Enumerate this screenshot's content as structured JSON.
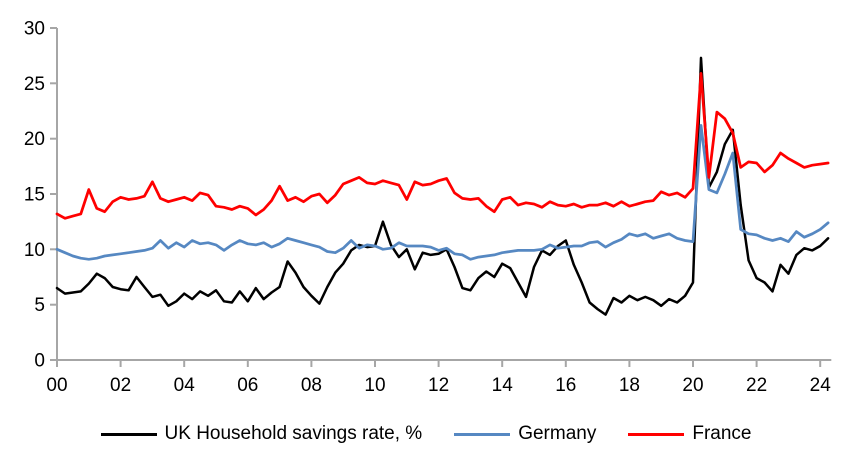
{
  "chart_data": {
    "type": "line",
    "title": "",
    "xlabel": "",
    "ylabel": "",
    "xlim": [
      2000,
      2024.5
    ],
    "ylim": [
      0,
      30
    ],
    "y_ticks": [
      0,
      5,
      10,
      15,
      20,
      25,
      30
    ],
    "x_axis": {
      "tick_labels": [
        "00",
        "02",
        "04",
        "06",
        "08",
        "10",
        "12",
        "14",
        "16",
        "18",
        "20",
        "22",
        "24"
      ],
      "years_per_tick": 2
    },
    "x_start_year": 2000,
    "x_step_years": 0.25,
    "frequency": "quarterly",
    "grid": false,
    "legend_position": "bottom",
    "axis_color": "#A6A6A6",
    "series": [
      {
        "name": "UK Household savings rate, %",
        "color": "#000000",
        "values": [
          6.5,
          6.0,
          6.1,
          6.2,
          6.9,
          7.8,
          7.4,
          6.6,
          6.4,
          6.3,
          7.5,
          6.6,
          5.7,
          5.9,
          4.9,
          5.3,
          6.0,
          5.5,
          6.2,
          5.8,
          6.3,
          5.3,
          5.2,
          6.2,
          5.3,
          6.5,
          5.5,
          6.1,
          6.6,
          8.9,
          7.9,
          6.6,
          5.8,
          5.1,
          6.6,
          7.9,
          8.7,
          9.9,
          10.4,
          10.2,
          10.3,
          12.5,
          10.4,
          9.3,
          10.0,
          8.2,
          9.7,
          9.5,
          9.6,
          10.0,
          8.4,
          6.5,
          6.3,
          7.4,
          8.0,
          7.5,
          8.7,
          8.3,
          7.0,
          5.7,
          8.4,
          9.9,
          9.5,
          10.3,
          10.8,
          8.6,
          7.0,
          5.2,
          4.6,
          4.1,
          5.6,
          5.2,
          5.8,
          5.4,
          5.7,
          5.4,
          4.9,
          5.5,
          5.2,
          5.8,
          7.0,
          27.3,
          15.6,
          17.0,
          19.5,
          20.8,
          14.0,
          9.0,
          7.4,
          7.0,
          6.2,
          8.6,
          7.8,
          9.5,
          10.1,
          9.9,
          10.3,
          11.0
        ]
      },
      {
        "name": "Germany",
        "color": "#5688C2",
        "values": [
          10.0,
          9.7,
          9.4,
          9.2,
          9.1,
          9.2,
          9.4,
          9.5,
          9.6,
          9.7,
          9.8,
          9.9,
          10.1,
          10.8,
          10.1,
          10.6,
          10.2,
          10.8,
          10.5,
          10.6,
          10.4,
          9.9,
          10.4,
          10.8,
          10.5,
          10.4,
          10.6,
          10.2,
          10.5,
          11.0,
          10.8,
          10.6,
          10.4,
          10.2,
          9.8,
          9.7,
          10.1,
          10.8,
          10.1,
          10.4,
          10.3,
          10.0,
          10.1,
          10.6,
          10.3,
          10.3,
          10.3,
          10.2,
          9.9,
          10.1,
          9.6,
          9.5,
          9.1,
          9.3,
          9.4,
          9.5,
          9.7,
          9.8,
          9.9,
          9.9,
          9.9,
          10.0,
          10.4,
          10.1,
          10.2,
          10.3,
          10.3,
          10.6,
          10.7,
          10.2,
          10.6,
          10.9,
          11.4,
          11.2,
          11.4,
          11.0,
          11.2,
          11.4,
          11.0,
          10.8,
          10.7,
          21.2,
          15.4,
          15.1,
          16.8,
          18.7,
          11.8,
          11.4,
          11.3,
          11.0,
          10.8,
          11.0,
          10.7,
          11.6,
          11.1,
          11.4,
          11.8,
          12.4
        ]
      },
      {
        "name": "France",
        "color": "#FF0000",
        "values": [
          13.2,
          12.8,
          13.0,
          13.2,
          15.4,
          13.7,
          13.4,
          14.3,
          14.7,
          14.5,
          14.6,
          14.8,
          16.1,
          14.6,
          14.3,
          14.5,
          14.7,
          14.4,
          15.1,
          14.9,
          13.9,
          13.8,
          13.6,
          13.9,
          13.7,
          13.1,
          13.6,
          14.4,
          15.7,
          14.4,
          14.7,
          14.3,
          14.8,
          15.0,
          14.2,
          14.9,
          15.9,
          16.2,
          16.5,
          16.0,
          15.9,
          16.2,
          16.0,
          15.8,
          14.5,
          16.1,
          15.8,
          15.9,
          16.2,
          16.4,
          15.1,
          14.6,
          14.5,
          14.6,
          13.9,
          13.4,
          14.5,
          14.7,
          14.0,
          14.2,
          14.1,
          13.8,
          14.3,
          14.0,
          13.9,
          14.1,
          13.8,
          14.0,
          14.0,
          14.2,
          13.9,
          14.3,
          13.9,
          14.1,
          14.3,
          14.4,
          15.2,
          14.9,
          15.1,
          14.7,
          15.5,
          25.9,
          16.5,
          22.4,
          21.8,
          20.5,
          17.4,
          17.9,
          17.8,
          17.0,
          17.6,
          18.7,
          18.2,
          17.8,
          17.4,
          17.6,
          17.7,
          17.8
        ]
      }
    ]
  }
}
